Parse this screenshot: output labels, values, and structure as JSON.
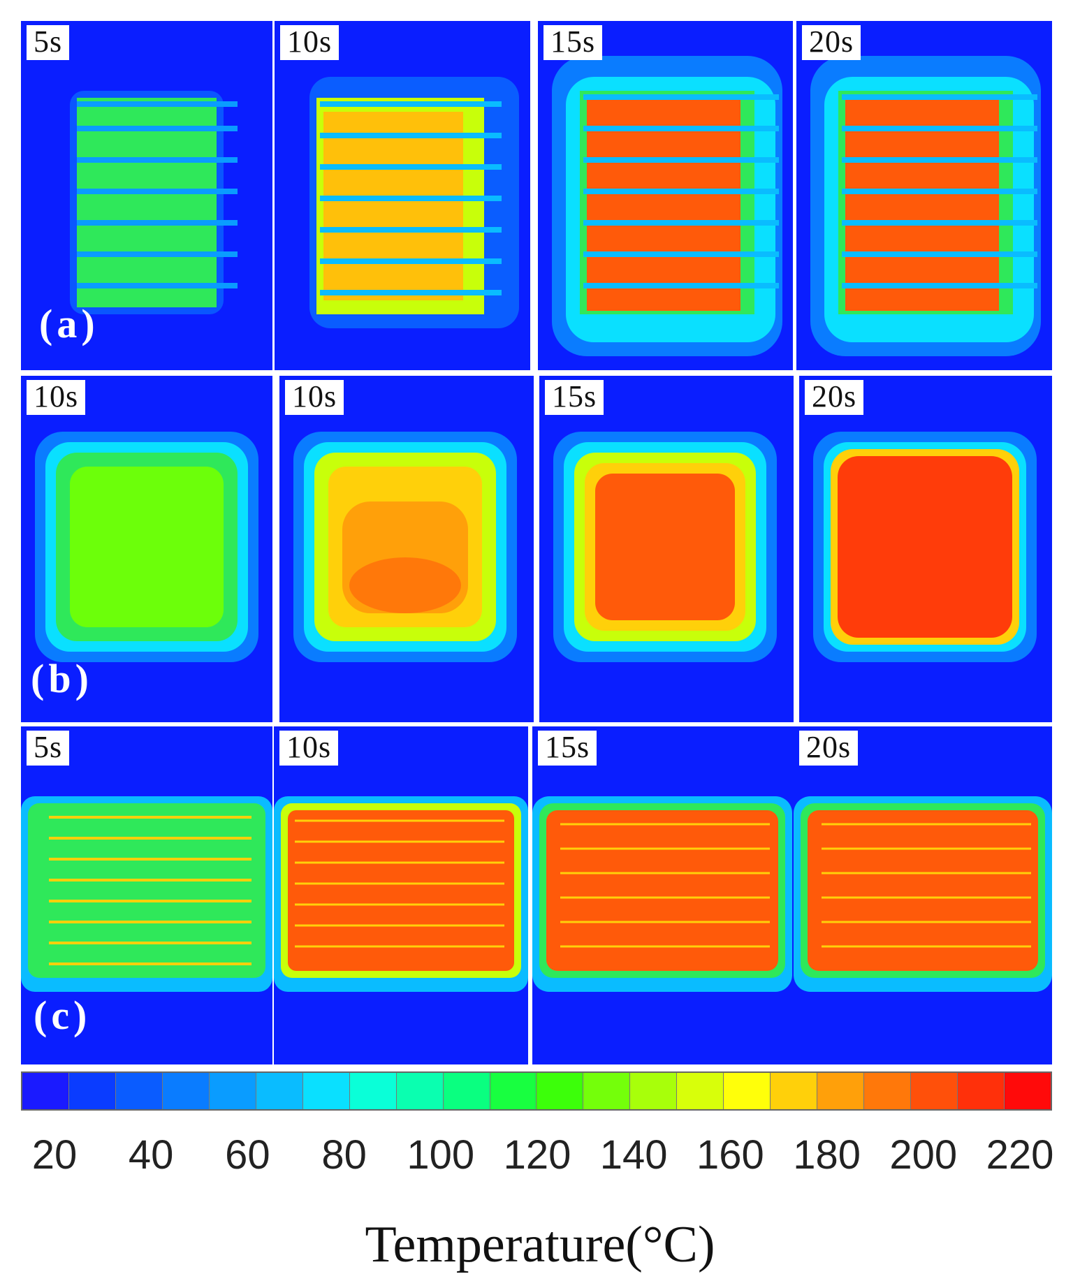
{
  "rows": [
    {
      "label": "(a)",
      "panels": [
        "5s",
        "10s",
        "15s",
        "20s"
      ]
    },
    {
      "label": "(b)",
      "panels": [
        "10s",
        "10s",
        "15s",
        "20s"
      ]
    },
    {
      "label": "(c)",
      "panels": [
        "5s",
        "10s",
        "15s",
        "20s"
      ]
    }
  ],
  "colorbar": {
    "ticks": [
      "20",
      "40",
      "60",
      "80",
      "100",
      "120",
      "140",
      "160",
      "180",
      "200",
      "220"
    ],
    "colors": [
      "#1a1aff",
      "#0a3cff",
      "#0a5cff",
      "#0a7cff",
      "#0a9cff",
      "#0abcff",
      "#0ae0ff",
      "#0affd8",
      "#0affb0",
      "#0aff80",
      "#18ff40",
      "#3cff0a",
      "#74ff0a",
      "#a8ff0a",
      "#d8ff0a",
      "#ffff0a",
      "#ffd00a",
      "#ffa00a",
      "#ff780a",
      "#ff500a",
      "#ff300a",
      "#ff0a0a"
    ],
    "title": "Temperature(°C)"
  },
  "colors": {
    "background": "#0a1eff",
    "cool_halo": "#0ab4ff",
    "mid_green": "#3cff0a",
    "hot_orange": "#ff5a0a"
  }
}
